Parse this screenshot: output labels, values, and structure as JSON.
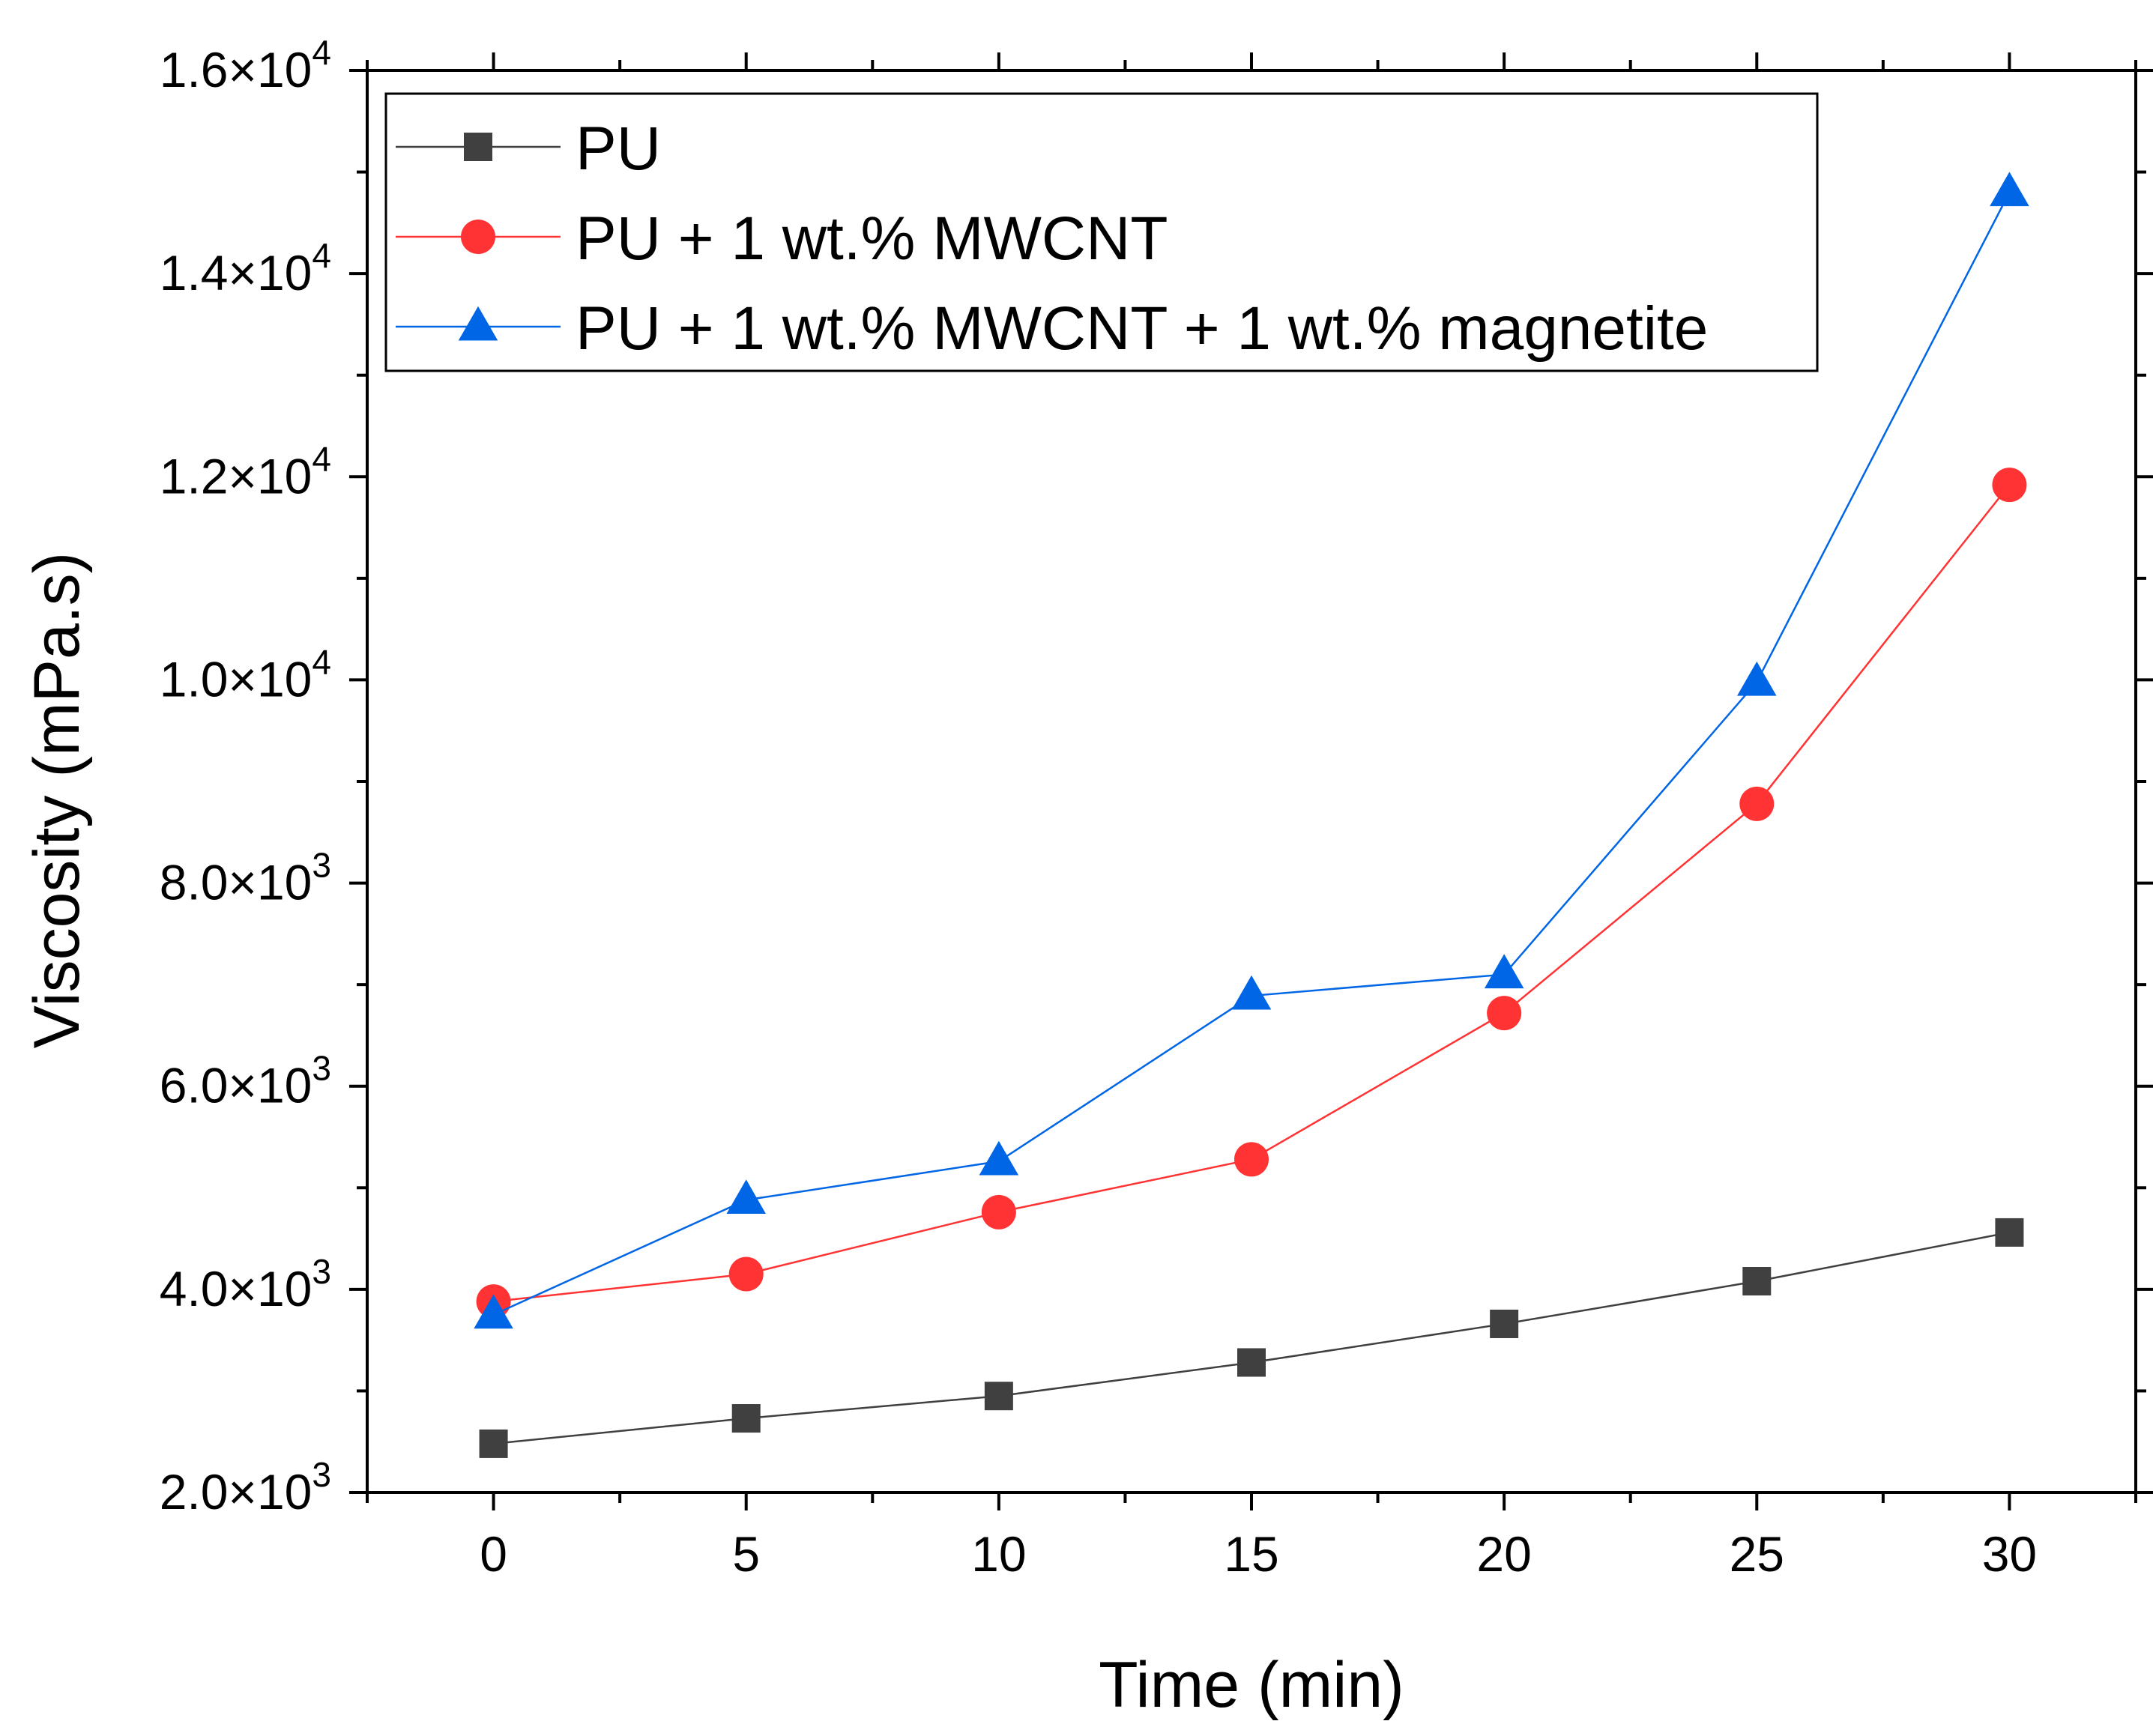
{
  "chart_data": {
    "type": "line",
    "title": "",
    "xlabel": "Time (min)",
    "ylabel": "Viscosity (mPa.s)",
    "xlim": [
      -2.5,
      32.5
    ],
    "ylim": [
      2000,
      16000
    ],
    "x": [
      0,
      5,
      10,
      15,
      20,
      25,
      30
    ],
    "x_ticks": [
      {
        "value": 0,
        "label": "0"
      },
      {
        "value": 5,
        "label": "5"
      },
      {
        "value": 10,
        "label": "10"
      },
      {
        "value": 15,
        "label": "15"
      },
      {
        "value": 20,
        "label": "20"
      },
      {
        "value": 25,
        "label": "25"
      },
      {
        "value": 30,
        "label": "30"
      }
    ],
    "y_ticks": [
      {
        "value": 2000,
        "mantissa": "2.0×10",
        "exp": "3"
      },
      {
        "value": 4000,
        "mantissa": "4.0×10",
        "exp": "3"
      },
      {
        "value": 6000,
        "mantissa": "6.0×10",
        "exp": "3"
      },
      {
        "value": 8000,
        "mantissa": "8.0×10",
        "exp": "3"
      },
      {
        "value": 10000,
        "mantissa": "1.0×10",
        "exp": "4"
      },
      {
        "value": 12000,
        "mantissa": "1.2×10",
        "exp": "4"
      },
      {
        "value": 14000,
        "mantissa": "1.4×10",
        "exp": "4"
      },
      {
        "value": 16000,
        "mantissa": "1.6×10",
        "exp": "4"
      }
    ],
    "grid": false,
    "legend_position": "top-left",
    "series": [
      {
        "name": "PU",
        "marker": "square",
        "color": "#404040",
        "values": [
          2480,
          2730,
          2950,
          3280,
          3660,
          4080,
          4560
        ]
      },
      {
        "name": "PU + 1 wt.% MWCNT",
        "marker": "circle",
        "color": "#ff3333",
        "values": [
          3880,
          4150,
          4760,
          5280,
          6720,
          8780,
          11920
        ]
      },
      {
        "name": "PU + 1 wt.% MWCNT + 1 wt.% magnetite",
        "marker": "triangle",
        "color": "#0066e6",
        "values": [
          3750,
          4880,
          5260,
          6890,
          7100,
          9980,
          14800
        ]
      }
    ]
  }
}
